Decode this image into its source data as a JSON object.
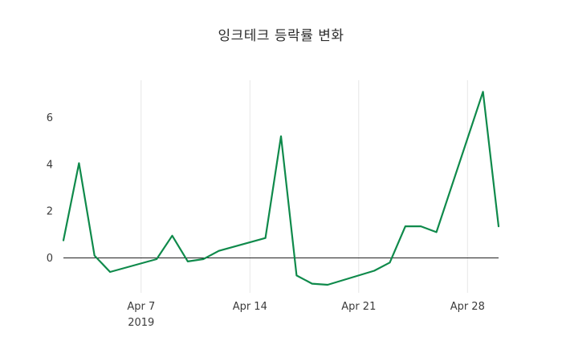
{
  "chart_data": {
    "type": "line",
    "title": "잉크테크 등락률 변화",
    "xlabel": "",
    "ylabel": "",
    "legend": "none",
    "grid": "vertical-only",
    "grid_color": "#e6e6e6",
    "zero_line": true,
    "zero_line_color": "#222222",
    "line_color": "#0f8a4b",
    "background_color": "#ffffff",
    "ylim": [
      -1.6,
      7.6
    ],
    "y_ticks": [
      0,
      2,
      4,
      6
    ],
    "x_range": [
      "2019-04-02",
      "2019-04-30"
    ],
    "x_ticks": [
      {
        "label": "Apr 7",
        "sublabel": "2019",
        "date": "2019-04-07"
      },
      {
        "label": "Apr 14",
        "sublabel": "",
        "date": "2019-04-14"
      },
      {
        "label": "Apr 21",
        "sublabel": "",
        "date": "2019-04-21"
      },
      {
        "label": "Apr 28",
        "sublabel": "",
        "date": "2019-04-28"
      }
    ],
    "points": [
      {
        "date": "2019-04-02",
        "value": 0.75
      },
      {
        "date": "2019-04-03",
        "value": 4.05
      },
      {
        "date": "2019-04-04",
        "value": 0.1
      },
      {
        "date": "2019-04-05",
        "value": -0.6
      },
      {
        "date": "2019-04-08",
        "value": -0.05
      },
      {
        "date": "2019-04-09",
        "value": 0.95
      },
      {
        "date": "2019-04-10",
        "value": -0.15
      },
      {
        "date": "2019-04-11",
        "value": -0.05
      },
      {
        "date": "2019-04-12",
        "value": 0.3
      },
      {
        "date": "2019-04-15",
        "value": 0.85
      },
      {
        "date": "2019-04-16",
        "value": 5.2
      },
      {
        "date": "2019-04-17",
        "value": -0.75
      },
      {
        "date": "2019-04-18",
        "value": -1.1
      },
      {
        "date": "2019-04-19",
        "value": -1.15
      },
      {
        "date": "2019-04-22",
        "value": -0.55
      },
      {
        "date": "2019-04-23",
        "value": -0.2
      },
      {
        "date": "2019-04-24",
        "value": 1.35
      },
      {
        "date": "2019-04-25",
        "value": 1.35
      },
      {
        "date": "2019-04-26",
        "value": 1.1
      },
      {
        "date": "2019-04-29",
        "value": 7.1
      },
      {
        "date": "2019-04-30",
        "value": 1.35
      }
    ]
  }
}
